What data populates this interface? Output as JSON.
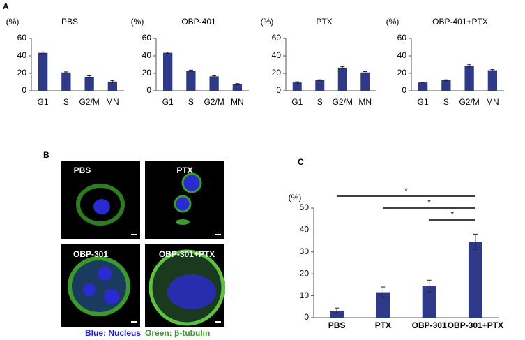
{
  "panels": {
    "a": "A",
    "b": "B",
    "c": "C"
  },
  "chart_data": [
    {
      "type": "bar",
      "title": "PBS",
      "y_unit": "(%)",
      "categories": [
        "G1",
        "S",
        "G2/M",
        "MN"
      ],
      "values": [
        43.5,
        21,
        16,
        10.5
      ],
      "errors": [
        1,
        0.7,
        1.2,
        1.2
      ],
      "color": "#2e3a87",
      "ylim": [
        0,
        60
      ],
      "yticks": [
        0,
        20,
        40,
        60
      ]
    },
    {
      "type": "bar",
      "title": "OBP-401",
      "y_unit": "(%)",
      "categories": [
        "G1",
        "S",
        "G2/M",
        "MN"
      ],
      "values": [
        43.5,
        23,
        16.5,
        7.5
      ],
      "errors": [
        0.8,
        0.7,
        0.8,
        0.7
      ],
      "color": "#2e3a87",
      "ylim": [
        0,
        60
      ],
      "yticks": [
        0,
        20,
        40,
        60
      ]
    },
    {
      "type": "bar",
      "title": "PTX",
      "y_unit": "(%)",
      "categories": [
        "G1",
        "S",
        "G2/M",
        "MN"
      ],
      "values": [
        9.5,
        12,
        26.5,
        21
      ],
      "errors": [
        0.8,
        0.6,
        1.2,
        1
      ],
      "color": "#2e3a87",
      "ylim": [
        0,
        60
      ],
      "yticks": [
        0,
        20,
        40,
        60
      ]
    },
    {
      "type": "bar",
      "title": "OBP-401+PTX",
      "y_unit": "(%)",
      "categories": [
        "G1",
        "S",
        "G2/M",
        "MN"
      ],
      "values": [
        9.5,
        12,
        28.5,
        23.5
      ],
      "errors": [
        0.5,
        0.6,
        1.3,
        0.8
      ],
      "color": "#2e3a87",
      "ylim": [
        0,
        60
      ],
      "yticks": [
        0,
        20,
        40,
        60
      ]
    },
    {
      "type": "bar",
      "y_unit": "(%)",
      "categories": [
        "PBS",
        "PTX",
        "OBP-301",
        "OBP-301+PTX"
      ],
      "values": [
        3.2,
        11.6,
        14.4,
        34.6
      ],
      "errors": [
        1.2,
        2.4,
        2.7,
        3.5
      ],
      "color": "#2e3a87",
      "ylim": [
        0,
        50
      ],
      "yticks": [
        0,
        10,
        20,
        30,
        40,
        50
      ],
      "annotations": [
        {
          "from": "PBS",
          "to": "OBP-301+PTX",
          "label": "*"
        },
        {
          "from": "PTX",
          "to": "OBP-301+PTX",
          "label": "*"
        },
        {
          "from": "OBP-301",
          "to": "OBP-301+PTX",
          "label": "*"
        }
      ]
    }
  ],
  "images": [
    {
      "label": "PBS"
    },
    {
      "label": "PTX"
    },
    {
      "label": "OBP-301"
    },
    {
      "label": "OBP-301+PTX"
    }
  ],
  "image_caption": {
    "blue": "Blue: Nucleus",
    "green": "Green: β-tubulin"
  }
}
